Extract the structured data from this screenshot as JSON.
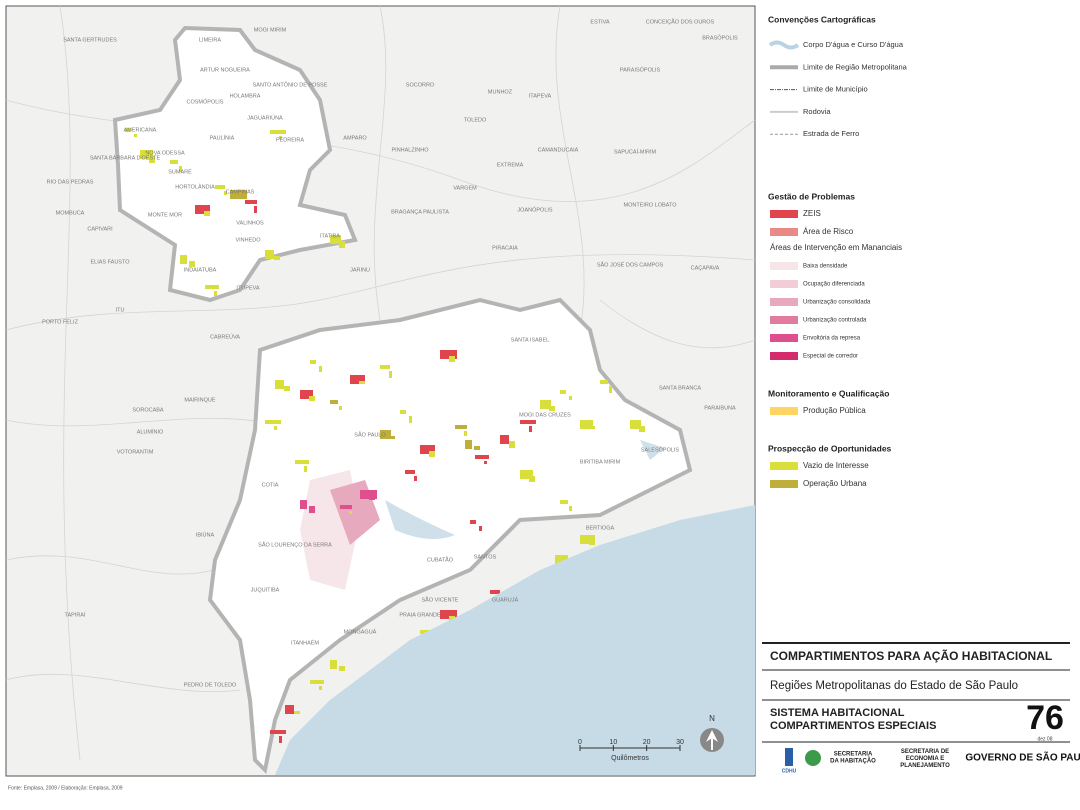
{
  "map": {
    "labels": [
      "SANTA GERTRUDES",
      "LIMEIRA",
      "MOGI MIRIM",
      "ARTUR NOGUEIRA",
      "SANTO ANTÔNIO DE POSSE",
      "HOLAMBRA",
      "COSMÓPOLIS",
      "JAGUARIÚNA",
      "AMERICANA",
      "PAULÍNIA",
      "PEDREIRA",
      "NOVA ODESSA",
      "SANTA BÁRBARA D'OESTE",
      "SUMARÉ",
      "HORTOLÂNDIA",
      "CAMPINAS",
      "MONTE MOR",
      "VALINHOS",
      "VINHEDO",
      "ITATIBA",
      "INDAIATUBA",
      "ITUPEVA",
      "JARINU",
      "BRAGANÇA PAULISTA",
      "JOANÓPOLIS",
      "PIRACAIA",
      "SÃO JOSÉ DOS CAMPOS",
      "CAÇAPAVA",
      "SANTA ISABEL",
      "MOGI DAS CRUZES",
      "SALESÓPOLIS",
      "BIRITIBA MIRIM",
      "SÃO PAULO",
      "COTIA",
      "SÃO LOURENÇO DA SERRA",
      "JUQUITIBA",
      "CUBATÃO",
      "SANTOS",
      "BERTIOGA",
      "GUARUJÁ",
      "SÃO VICENTE",
      "PRAIA GRANDE",
      "MONGAGUÁ",
      "ITANHAÉM",
      "IBIÚNA",
      "TAPIRAÍ",
      "SOROCABA",
      "VOTORANTIM",
      "ALUMÍNIO",
      "MAIRINQUE",
      "CABREÚVA",
      "PORTO FELIZ",
      "ITU",
      "ELIAS FAUSTO",
      "CAPIVARI",
      "MOMBUCA",
      "RIO DAS PEDRAS",
      "SOCORRO",
      "AMPARO",
      "PINHALZINHO",
      "TOLEDO",
      "MUNHOZ",
      "ITAPEVA",
      "CAMANDUCAIA",
      "EXTREMA",
      "VARGEM",
      "PARAISÓPOLIS",
      "SAPUCAÍ-MIRIM",
      "MONTEIRO LOBATO",
      "ESTIVA",
      "CONCEIÇÃO DOS OUROS",
      "BRASÓPOLIS",
      "SANTA BRANCA",
      "PARAIBUNA",
      "PEDRO DE TOLEDO"
    ],
    "scale": {
      "ticks": [
        0,
        10,
        20,
        30
      ],
      "unit": "Quilômetros"
    },
    "north": "N",
    "source": "Fonte: Emplasa, 2009 / Elaboração: Emplasa, 2009"
  },
  "legend": {
    "sections": [
      {
        "title": "Convenções Cartográficas",
        "items": [
          {
            "label": "Corpo D'água e Curso D'água",
            "style": "water",
            "color": "#b9d3e3"
          },
          {
            "label": "Limite de Região Metropolitana",
            "style": "metro",
            "color": "#aaaaaa"
          },
          {
            "label": "Limite de Município",
            "style": "municipal",
            "color": "#555555"
          },
          {
            "label": "Rodovia",
            "style": "road",
            "color": "#cccccc"
          },
          {
            "label": "Estrada de Ferro",
            "style": "rail",
            "color": "#999999"
          }
        ]
      },
      {
        "title": "Gestão de Problemas",
        "items": [
          {
            "label": "ZEIS",
            "style": "fill",
            "color": "#e0454e"
          },
          {
            "label": "Área de Risco",
            "style": "fill",
            "color": "#ea8a86"
          }
        ],
        "subtitle": "Áreas de Intervenção em Mananciais",
        "subitems": [
          {
            "label": "Baixa densidade",
            "style": "fill",
            "color": "#f6e6ea"
          },
          {
            "label": "Ocupação diferenciada",
            "style": "fill",
            "color": "#f2cdd7"
          },
          {
            "label": "Urbanização consolidada",
            "style": "fill",
            "color": "#e7a9bd"
          },
          {
            "label": "Urbanização controlada",
            "style": "fill",
            "color": "#e27ba0"
          },
          {
            "label": "Envoltória da represa",
            "style": "fill",
            "color": "#df4f8d"
          },
          {
            "label": "Especial de corredor",
            "style": "fill",
            "color": "#d42b6c"
          }
        ]
      },
      {
        "title": "Monitoramento e Qualificação",
        "items": [
          {
            "label": "Produção Pública",
            "style": "fill",
            "color": "#fcd562"
          }
        ]
      },
      {
        "title": "Prospecção de Oportunidades",
        "items": [
          {
            "label": "Vazio de Interesse",
            "style": "fill",
            "color": "#d8df3a"
          },
          {
            "label": "Operação Urbana",
            "style": "fill",
            "color": "#bfae3a"
          }
        ]
      }
    ]
  },
  "titleblock": {
    "title": "COMPARTIMENTOS PARA AÇÃO HABITACIONAL",
    "subtitle": "Regiões Metropolitanas do Estado de São Paulo",
    "system": [
      "SISTEMA HABITACIONAL",
      "COMPARTIMENTOS ESPECIAIS"
    ],
    "number": "76",
    "date": "dez 08",
    "logos": [
      "CDHU",
      "SECRETARIA DA HABITAÇÃO",
      "SECRETARIA DE ECONOMIA E PLANEJAMENTO",
      "GOVERNO DE SÃO PAULO"
    ]
  }
}
